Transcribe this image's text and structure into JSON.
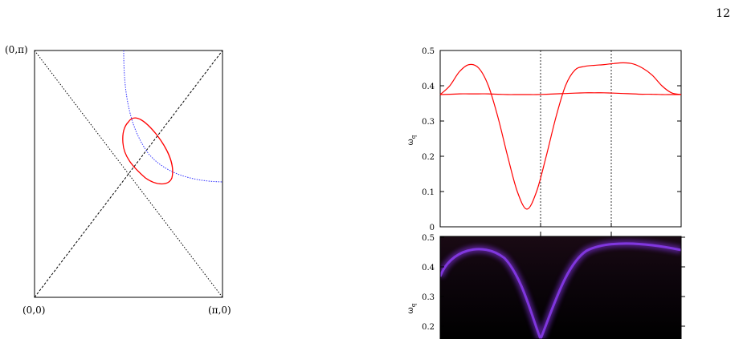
{
  "page_number": "12",
  "left_panel": {
    "corner_labels": {
      "top_left": "(0,π)",
      "bottom_left": "(0,0)",
      "bottom_right": "(π,0)"
    },
    "colors": {
      "ellipse": "#ff0000",
      "surface_curve": "#0000ff",
      "diagonals": "#000000"
    }
  },
  "right_top_panel": {
    "ylabel": "ω",
    "ylabel_sub": "q",
    "y_ticks": [
      "0",
      "0.1",
      "0.2",
      "0.3",
      "0.4",
      "0.5"
    ],
    "ylim": [
      0,
      0.5
    ],
    "line_color": "#ff0000"
  },
  "right_bottom_panel": {
    "ylabel": "ω",
    "ylabel_sub": "q",
    "y_ticks": [
      "0.2",
      "0.3",
      "0.4",
      "0.5"
    ],
    "colormap_colors": [
      "#000000",
      "#7a2fd6"
    ]
  },
  "chart_data": [
    {
      "type": "line",
      "title": "",
      "xlabel": "",
      "ylabel": "ωq",
      "ylim": [
        0,
        0.5
      ],
      "x": [
        0,
        0.1,
        0.2,
        0.3,
        0.4,
        0.5,
        0.6,
        0.7,
        0.8,
        0.9,
        1.0,
        1.1,
        1.2,
        1.3,
        1.4,
        1.5,
        1.6,
        1.7,
        1.8,
        1.9,
        2.0,
        2.1,
        2.2,
        2.3,
        2.4,
        2.5
      ],
      "series": [
        {
          "values": [
            0.375,
            0.4,
            0.44,
            0.46,
            0.45,
            0.4,
            0.31,
            0.2,
            0.1,
            0.05,
            0.1,
            0.2,
            0.31,
            0.4,
            0.445,
            0.455,
            0.458,
            0.46,
            0.463,
            0.465,
            0.462,
            0.45,
            0.43,
            0.4,
            0.38,
            0.375
          ]
        },
        {
          "values": [
            0.375,
            0.376,
            0.377,
            0.377,
            0.377,
            0.377,
            0.376,
            0.375,
            0.375,
            0.375,
            0.375,
            0.376,
            0.377,
            0.378,
            0.379,
            0.38,
            0.38,
            0.38,
            0.379,
            0.378,
            0.377,
            0.376,
            0.376,
            0.375,
            0.375,
            0.375
          ]
        }
      ]
    },
    {
      "type": "heatmap",
      "title": "",
      "xlabel": "",
      "ylabel": "ωq",
      "ylim": [
        0.15,
        0.5
      ]
    }
  ]
}
